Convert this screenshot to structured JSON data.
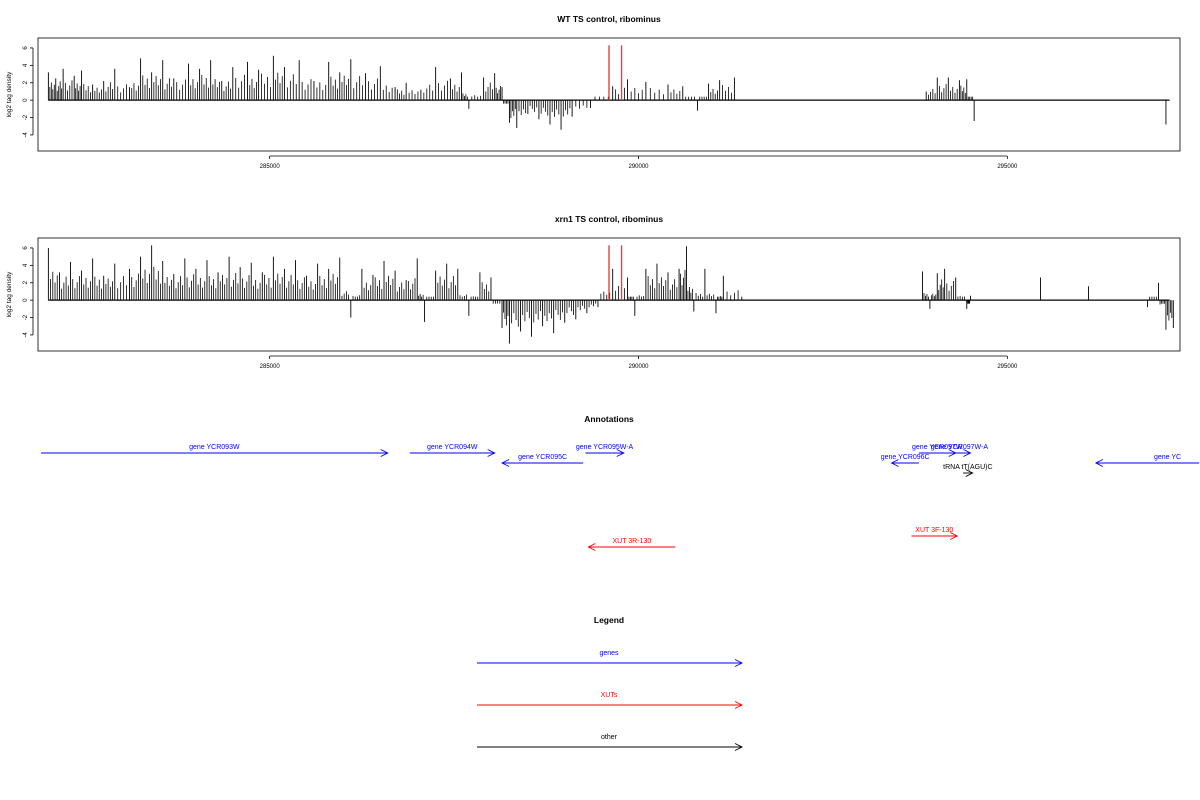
{
  "chart_data": [
    {
      "type": "bar",
      "title": "WT TS control, ribominus",
      "xlabel": "",
      "ylabel": "log2 tag density",
      "xlim": [
        281900,
        297300
      ],
      "ylim": [
        -5.5,
        6.8
      ],
      "x_ticks": [
        285000,
        290000,
        295000
      ],
      "y_ticks": [
        -4,
        -2,
        0,
        2,
        4,
        6
      ],
      "bar_color": "#000000",
      "highlight_color": "#e8413a",
      "series": [
        {
          "bars": [
            [
              282000,
              3.2
            ],
            [
              282100,
              2.5
            ],
            [
              282200,
              3.6
            ],
            [
              282350,
              2.8
            ],
            [
              282450,
              3.4
            ],
            [
              282600,
              1.8
            ],
            [
              282750,
              2.2
            ],
            [
              282900,
              3.6
            ],
            [
              283100,
              1.5
            ],
            [
              283250,
              4.8
            ],
            [
              283400,
              3.2
            ],
            [
              283550,
              4.6
            ],
            [
              283700,
              2.5
            ],
            [
              283900,
              4.2
            ],
            [
              284050,
              3.6
            ],
            [
              284200,
              4.6
            ],
            [
              284350,
              2.2
            ],
            [
              284500,
              3.8
            ],
            [
              284700,
              4.4
            ],
            [
              284850,
              3.5
            ],
            [
              285050,
              5.1
            ],
            [
              285200,
              3.8
            ],
            [
              285400,
              4.6
            ],
            [
              285600,
              2.2
            ],
            [
              285800,
              4.4
            ],
            [
              285950,
              3.2
            ],
            [
              286100,
              4.7
            ],
            [
              286300,
              3.1
            ],
            [
              286500,
              3.9
            ],
            [
              286700,
              1.5
            ],
            [
              286850,
              2.0
            ],
            [
              287050,
              1.2
            ],
            [
              287250,
              3.8
            ],
            [
              287450,
              2.5
            ],
            [
              287600,
              3.2
            ],
            [
              287700,
              -1.0
            ],
            [
              287900,
              2.6
            ],
            [
              288050,
              3.1
            ],
            [
              288150,
              1.5
            ],
            [
              288250,
              -2.6
            ],
            [
              288350,
              -3.2
            ],
            [
              288500,
              -1.6
            ],
            [
              288650,
              -2.2
            ],
            [
              288800,
              -2.8
            ],
            [
              288950,
              -3.4
            ],
            [
              289100,
              -1.9
            ],
            [
              289350,
              -0.9
            ],
            [
              289650,
              1.6
            ],
            [
              289850,
              2.4
            ],
            [
              290100,
              2.1
            ],
            [
              290400,
              1.8
            ],
            [
              290600,
              1.6
            ],
            [
              290800,
              -1.2
            ],
            [
              290950,
              1.9
            ],
            [
              291100,
              2.3
            ],
            [
              291300,
              2.6
            ],
            [
              293900,
              1.0
            ],
            [
              294050,
              2.6
            ],
            [
              294200,
              2.6
            ],
            [
              294350,
              2.3
            ],
            [
              294450,
              2.4
            ],
            [
              294550,
              -2.4
            ],
            [
              297150,
              -2.8
            ]
          ]
        },
        {
          "highlight_bars": [
            [
              289600,
              6.3
            ],
            [
              289770,
              6.3
            ]
          ]
        }
      ]
    },
    {
      "type": "bar",
      "title": "xrn1 TS control, ribominus",
      "xlabel": "",
      "ylabel": "log2 tag density",
      "xlim": [
        281900,
        297300
      ],
      "ylim": [
        -5.5,
        6.8
      ],
      "x_ticks": [
        285000,
        290000,
        295000
      ],
      "y_ticks": [
        -4,
        -2,
        0,
        2,
        4,
        6
      ],
      "bar_color": "#000000",
      "highlight_color": "#e8413a",
      "series": [
        {
          "bars": [
            [
              282000,
              6.0
            ],
            [
              282150,
              3.2
            ],
            [
              282300,
              4.4
            ],
            [
              282450,
              3.4
            ],
            [
              282600,
              4.8
            ],
            [
              282750,
              2.8
            ],
            [
              282900,
              4.2
            ],
            [
              283100,
              3.6
            ],
            [
              283250,
              5.0
            ],
            [
              283400,
              6.3
            ],
            [
              283550,
              4.5
            ],
            [
              283700,
              3.0
            ],
            [
              283850,
              4.8
            ],
            [
              284000,
              3.6
            ],
            [
              284150,
              4.6
            ],
            [
              284300,
              3.2
            ],
            [
              284450,
              5.0
            ],
            [
              284600,
              3.8
            ],
            [
              284750,
              4.3
            ],
            [
              284900,
              3.2
            ],
            [
              285050,
              5.0
            ],
            [
              285200,
              3.6
            ],
            [
              285350,
              4.6
            ],
            [
              285500,
              2.8
            ],
            [
              285650,
              4.2
            ],
            [
              285800,
              3.6
            ],
            [
              285950,
              4.9
            ],
            [
              286100,
              -2.0
            ],
            [
              286250,
              3.6
            ],
            [
              286400,
              2.9
            ],
            [
              286550,
              4.5
            ],
            [
              286700,
              3.4
            ],
            [
              286850,
              2.3
            ],
            [
              287000,
              4.8
            ],
            [
              287100,
              -2.5
            ],
            [
              287250,
              3.4
            ],
            [
              287400,
              4.2
            ],
            [
              287550,
              3.6
            ],
            [
              287700,
              -1.8
            ],
            [
              287850,
              3.2
            ],
            [
              288000,
              2.6
            ],
            [
              288150,
              -3.2
            ],
            [
              288250,
              -5.0
            ],
            [
              288400,
              -3.6
            ],
            [
              288550,
              -4.2
            ],
            [
              288700,
              -3.0
            ],
            [
              288850,
              -3.8
            ],
            [
              289000,
              -2.6
            ],
            [
              289150,
              -2.2
            ],
            [
              289300,
              -1.5
            ],
            [
              289450,
              -0.8
            ],
            [
              289650,
              3.6
            ],
            [
              289850,
              2.6
            ],
            [
              289950,
              -1.8
            ],
            [
              290100,
              3.6
            ],
            [
              290250,
              4.2
            ],
            [
              290400,
              3.2
            ],
            [
              290550,
              3.6
            ],
            [
              290650,
              6.2
            ],
            [
              290750,
              -1.3
            ],
            [
              290900,
              3.6
            ],
            [
              291050,
              -1.5
            ],
            [
              291150,
              2.8
            ],
            [
              291400,
              0.4
            ],
            [
              293850,
              3.3
            ],
            [
              293950,
              -1.0
            ],
            [
              294050,
              3.1
            ],
            [
              294150,
              3.6
            ],
            [
              294300,
              2.6
            ],
            [
              294450,
              -1.0
            ],
            [
              294500,
              0.5
            ],
            [
              295450,
              2.6
            ],
            [
              296100,
              1.6
            ],
            [
              296900,
              -0.8
            ],
            [
              297050,
              2.0
            ],
            [
              297150,
              -3.4
            ],
            [
              297250,
              -3.2
            ]
          ]
        },
        {
          "highlight_bars": [
            [
              289600,
              6.3
            ],
            [
              289770,
              6.3
            ]
          ]
        }
      ]
    },
    {
      "type": "table",
      "title": "Annotations",
      "colors": {
        "genes": "#0000ff",
        "XUTs": "#ff0000",
        "other": "#000000"
      },
      "features": [
        {
          "label": "gene YCR093W",
          "category": "genes",
          "strand": "+",
          "start": 281900,
          "end": 286600,
          "row": 1
        },
        {
          "label": "gene YCR094W",
          "category": "genes",
          "strand": "+",
          "start": 286900,
          "end": 288050,
          "row": 1
        },
        {
          "label": "gene YCR095C",
          "category": "genes",
          "strand": "-",
          "start": 288150,
          "end": 289250,
          "row": 2
        },
        {
          "label": "gene YCR095W-A",
          "category": "genes",
          "strand": "+",
          "start": 289280,
          "end": 289800,
          "row": 1
        },
        {
          "label": "gene YCR096C",
          "category": "genes",
          "strand": "-",
          "start": 293430,
          "end": 293800,
          "row": 2
        },
        {
          "label": "gene YCR097W",
          "category": "genes",
          "strand": "+",
          "start": 293800,
          "end": 294300,
          "row": 1
        },
        {
          "label": "gene YCR097W-A",
          "category": "genes",
          "strand": "+",
          "start": 294200,
          "end": 294500,
          "row": 1
        },
        {
          "label": "tRNA tT(AGU)C",
          "category": "other",
          "strand": "+",
          "start": 294400,
          "end": 294530,
          "row": 3
        },
        {
          "label": "gene YC",
          "category": "genes",
          "strand": "-",
          "start": 296200,
          "end": 297600,
          "row": 2
        },
        {
          "label": "XUT 3R-130",
          "category": "XUTs",
          "strand": "-",
          "start": 289320,
          "end": 290500,
          "row": 5
        },
        {
          "label": "XUT 3F-130",
          "category": "XUTs",
          "strand": "+",
          "start": 293700,
          "end": 294320,
          "row": 4
        }
      ]
    }
  ],
  "legend": {
    "title": "Legend",
    "items": [
      {
        "label": "genes",
        "color": "#0000ff"
      },
      {
        "label": "XUTs",
        "color": "#ff0000"
      },
      {
        "label": "other",
        "color": "#000000"
      }
    ]
  }
}
